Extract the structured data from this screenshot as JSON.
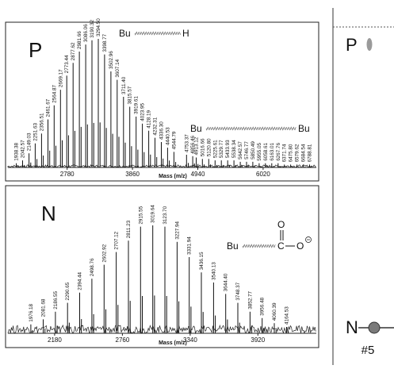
{
  "chart_data": [
    {
      "type": "bar",
      "panel_letter": "P",
      "xlabel": "Mass (m/z)",
      "x_ticks": [
        2780,
        3860,
        4940,
        6020
      ],
      "xlim": [
        1800,
        6900
      ],
      "ylim": [
        0,
        100
      ],
      "structures": [
        {
          "left": "Bu",
          "right": "H"
        },
        {
          "left": "Bu",
          "right": "Bu"
        }
      ],
      "peaks": [
        {
          "x": 1938.38,
          "y": 3,
          "label": "1938.38"
        },
        {
          "x": 2042.57,
          "y": 5,
          "label": "2042.57"
        },
        {
          "x": 2149.03,
          "y": 10,
          "label": "2149.03"
        },
        {
          "x": 2251.63,
          "y": 17,
          "label": "2251.63"
        },
        {
          "x": 2356.51,
          "y": 24,
          "label": "2356.51"
        },
        {
          "x": 2461.67,
          "y": 34,
          "label": "2461.67"
        },
        {
          "x": 2564.87,
          "y": 44,
          "label": "2564.87"
        },
        {
          "x": 2669.17,
          "y": 55,
          "label": "2669.17"
        },
        {
          "x": 2773.44,
          "y": 65,
          "label": "2773.44"
        },
        {
          "x": 2877.62,
          "y": 74,
          "label": "2877.62"
        },
        {
          "x": 2981.66,
          "y": 82,
          "label": "2981.66"
        },
        {
          "x": 3086.06,
          "y": 87,
          "label": "3086.06"
        },
        {
          "x": 3190.32,
          "y": 90,
          "label": "3190.32"
        },
        {
          "x": 3294.5,
          "y": 91,
          "label": "3294.50"
        },
        {
          "x": 3398.77,
          "y": 80,
          "label": "3398.77"
        },
        {
          "x": 3502.96,
          "y": 68,
          "label": "3502.96"
        },
        {
          "x": 3607.14,
          "y": 62,
          "label": "3607.14"
        },
        {
          "x": 3711.4,
          "y": 50,
          "label": "3711.40"
        },
        {
          "x": 3815.57,
          "y": 43,
          "label": "3815.57"
        },
        {
          "x": 3919.61,
          "y": 36,
          "label": "3919.61"
        },
        {
          "x": 4023.95,
          "y": 31,
          "label": "4023.95"
        },
        {
          "x": 4128.19,
          "y": 26,
          "label": "4128.19"
        },
        {
          "x": 4232.31,
          "y": 21,
          "label": "4232.31"
        },
        {
          "x": 4336.3,
          "y": 18,
          "label": "4336.30"
        },
        {
          "x": 4440.53,
          "y": 14,
          "label": "4440.53"
        },
        {
          "x": 4544.79,
          "y": 11,
          "label": "4544.79"
        },
        {
          "x": 4753.37,
          "y": 9,
          "label": "4753.37"
        },
        {
          "x": 4856.46,
          "y": 8,
          "label": "4856.46"
        },
        {
          "x": 4913.12,
          "y": 7,
          "label": "4913.12"
        },
        {
          "x": 5016.66,
          "y": 6,
          "label": "5016.66"
        },
        {
          "x": 5120.8,
          "y": 6,
          "label": "5120.80"
        },
        {
          "x": 5225.61,
          "y": 5,
          "label": "5225.61"
        },
        {
          "x": 5329.77,
          "y": 5,
          "label": "5329.77"
        },
        {
          "x": 5433.93,
          "y": 5,
          "label": "5433.93"
        },
        {
          "x": 5538.34,
          "y": 5,
          "label": "5538.34"
        },
        {
          "x": 5642.57,
          "y": 4,
          "label": "5642.57"
        },
        {
          "x": 5746.77,
          "y": 4,
          "label": "5746.77"
        },
        {
          "x": 5850.49,
          "y": 4,
          "label": "5850.49"
        },
        {
          "x": 5955.05,
          "y": 3,
          "label": "5955.05"
        },
        {
          "x": 6058.61,
          "y": 3,
          "label": "6058.61"
        },
        {
          "x": 6163.01,
          "y": 3,
          "label": "6163.01"
        },
        {
          "x": 6267.76,
          "y": 3,
          "label": "6267.76"
        },
        {
          "x": 6371.74,
          "y": 2,
          "label": "6371.74"
        },
        {
          "x": 6475.8,
          "y": 2,
          "label": "6475.80"
        },
        {
          "x": 6579.62,
          "y": 2,
          "label": "6579.62"
        },
        {
          "x": 6684.54,
          "y": 2,
          "label": "6684.54"
        },
        {
          "x": 6788.81,
          "y": 2,
          "label": "6788.81"
        }
      ]
    },
    {
      "type": "bar",
      "panel_letter": "N",
      "xlabel": "Mass (m/z)",
      "x_ticks": [
        2180,
        2760,
        3340,
        3920
      ],
      "xlim": [
        1780,
        4420
      ],
      "ylim": [
        0,
        100
      ],
      "structure": {
        "left": "Bu",
        "carbon": "C",
        "oxygen_top": "O",
        "oxygen_right": "O"
      },
      "peaks": [
        {
          "x": 1976.18,
          "y": 7,
          "label": "1976.18"
        },
        {
          "x": 2081.68,
          "y": 11,
          "label": "2081.68"
        },
        {
          "x": 2186.55,
          "y": 17,
          "label": "2186.55"
        },
        {
          "x": 2290.65,
          "y": 24,
          "label": "2290.65"
        },
        {
          "x": 2394.44,
          "y": 32,
          "label": "2394.44"
        },
        {
          "x": 2498.76,
          "y": 43,
          "label": "2498.76"
        },
        {
          "x": 2602.92,
          "y": 54,
          "label": "2602.92"
        },
        {
          "x": 2707.12,
          "y": 64,
          "label": "2707.12"
        },
        {
          "x": 2811.23,
          "y": 73,
          "label": "2811.23"
        },
        {
          "x": 2915.55,
          "y": 84,
          "label": "2915.55"
        },
        {
          "x": 3019.64,
          "y": 85,
          "label": "3019.64"
        },
        {
          "x": 3123.7,
          "y": 84,
          "label": "3123.70"
        },
        {
          "x": 3227.94,
          "y": 72,
          "label": "3227.94"
        },
        {
          "x": 3331.94,
          "y": 60,
          "label": "3331.94"
        },
        {
          "x": 3436.15,
          "y": 48,
          "label": "3436.15"
        },
        {
          "x": 3540.13,
          "y": 40,
          "label": "3540.13"
        },
        {
          "x": 3644.4,
          "y": 31,
          "label": "3644.40"
        },
        {
          "x": 3748.37,
          "y": 24,
          "label": "3748.37"
        },
        {
          "x": 3852.77,
          "y": 17,
          "label": "3852.77"
        },
        {
          "x": 3956.48,
          "y": 12,
          "label": "3956.48"
        },
        {
          "x": 4060.39,
          "y": 8,
          "label": "4060.39"
        },
        {
          "x": 4164.53,
          "y": 5,
          "label": "4164.53"
        }
      ]
    }
  ],
  "side_panel": {
    "p_label": "P",
    "n_label": "N",
    "sample_label": "#5",
    "p_color": "#9a9a9a",
    "n_color": "#7a7a7a"
  }
}
